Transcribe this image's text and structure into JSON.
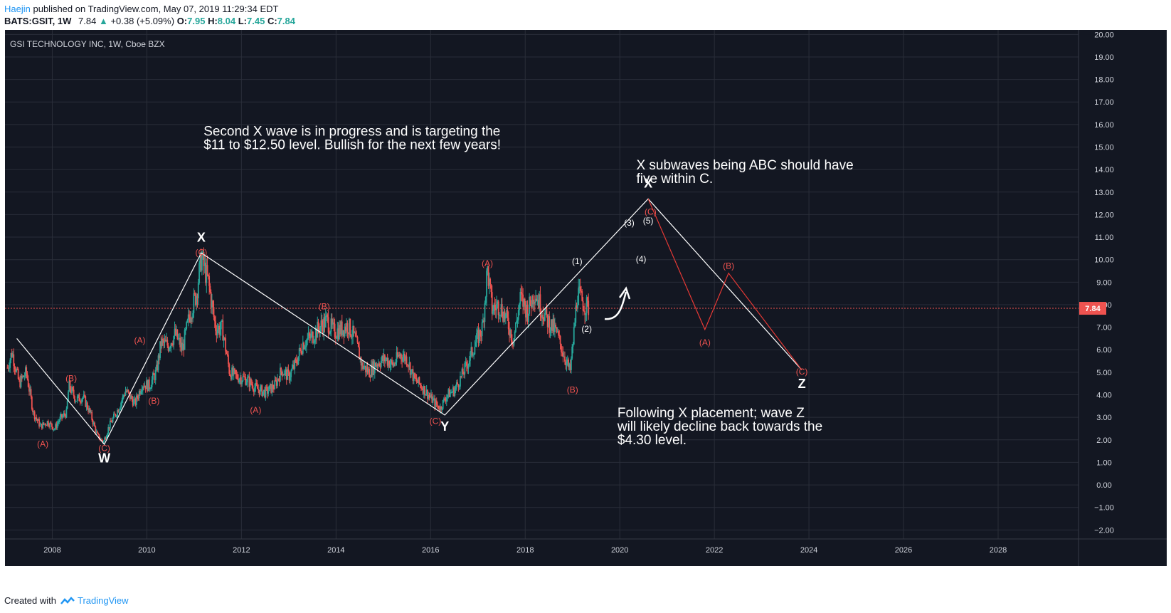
{
  "header": {
    "author": "Haejin",
    "published": "published on TradingView.com, May 07, 2019 11:29:34 EDT",
    "symbol": "BATS:GSIT, 1W",
    "last": "7.84",
    "change": "+0.38 (+5.09%)",
    "open_label": "O:",
    "open": "7.95",
    "high_label": "H:",
    "high": "8.04",
    "low_label": "L:",
    "low": "7.45",
    "close_label": "C:",
    "close": "7.84"
  },
  "footer": {
    "created_with": "Created with",
    "brand": "TradingView"
  },
  "colors": {
    "background": "#131722",
    "white": "#ffffff",
    "red": "#ef5350",
    "green": "#26a69a",
    "grid": "#2a2e39",
    "axis_text": "#d1d4dc",
    "price_line": "#ef5350"
  },
  "chart_data": {
    "type": "candlestick",
    "title": "GSI TECHNOLOGY INC, 1W, Cboe BZX",
    "x_range": [
      2007.0,
      2029.7
    ],
    "y_range": [
      -2.4,
      20.2
    ],
    "x_ticks": [
      2008,
      2010,
      2012,
      2014,
      2016,
      2018,
      2020,
      2022,
      2024,
      2026,
      2028
    ],
    "x_tick_labels": [
      "2008",
      "2010",
      "2012",
      "2014",
      "2016",
      "2018",
      "2020",
      "2022",
      "2024",
      "2026",
      "2028"
    ],
    "y_ticks": [
      -2,
      -1,
      0,
      1,
      2,
      3,
      4,
      5,
      6,
      7,
      8,
      9,
      10,
      11,
      12,
      13,
      14,
      15,
      16,
      17,
      18,
      19,
      20
    ],
    "y_tick_labels": [
      "−2.00",
      "−1.00",
      "0.00",
      "1.00",
      "2.00",
      "3.00",
      "4.00",
      "5.00",
      "6.00",
      "7.00",
      "8.00",
      "9.00",
      "10.00",
      "11.00",
      "12.00",
      "13.00",
      "14.00",
      "15.00",
      "16.00",
      "17.00",
      "18.00",
      "19.00",
      "20.00"
    ],
    "current_price": 7.84,
    "current_price_label": "7.84",
    "price_path": [
      [
        2007.05,
        5.2
      ],
      [
        2007.15,
        5.9
      ],
      [
        2007.3,
        4.5
      ],
      [
        2007.45,
        5.0
      ],
      [
        2007.6,
        3.2
      ],
      [
        2007.75,
        2.6
      ],
      [
        2007.9,
        2.8
      ],
      [
        2008.05,
        2.5
      ],
      [
        2008.15,
        2.9
      ],
      [
        2008.3,
        3.2
      ],
      [
        2008.35,
        4.4
      ],
      [
        2008.5,
        3.8
      ],
      [
        2008.65,
        3.9
      ],
      [
        2008.8,
        3.2
      ],
      [
        2008.95,
        2.2
      ],
      [
        2009.08,
        1.9
      ],
      [
        2009.2,
        2.6
      ],
      [
        2009.4,
        3.4
      ],
      [
        2009.55,
        4.2
      ],
      [
        2009.75,
        3.6
      ],
      [
        2009.9,
        4.5
      ],
      [
        2010.05,
        4.4
      ],
      [
        2010.2,
        5.0
      ],
      [
        2010.3,
        6.3
      ],
      [
        2010.45,
        6.2
      ],
      [
        2010.6,
        6.7
      ],
      [
        2010.75,
        6.0
      ],
      [
        2010.9,
        7.5
      ],
      [
        2011.05,
        8.5
      ],
      [
        2011.15,
        10.1
      ],
      [
        2011.3,
        9.0
      ],
      [
        2011.45,
        7.0
      ],
      [
        2011.6,
        6.9
      ],
      [
        2011.75,
        5.0
      ],
      [
        2011.9,
        4.8
      ],
      [
        2012.1,
        4.7
      ],
      [
        2012.3,
        4.3
      ],
      [
        2012.5,
        4.1
      ],
      [
        2012.7,
        4.4
      ],
      [
        2012.85,
        5.1
      ],
      [
        2013.0,
        4.8
      ],
      [
        2013.15,
        5.4
      ],
      [
        2013.3,
        6.3
      ],
      [
        2013.5,
        6.6
      ],
      [
        2013.65,
        7.0
      ],
      [
        2013.8,
        7.3
      ],
      [
        2013.95,
        6.8
      ],
      [
        2014.1,
        6.9
      ],
      [
        2014.25,
        7.1
      ],
      [
        2014.4,
        6.5
      ],
      [
        2014.55,
        5.3
      ],
      [
        2014.7,
        5.0
      ],
      [
        2014.85,
        5.4
      ],
      [
        2015.05,
        5.6
      ],
      [
        2015.2,
        5.3
      ],
      [
        2015.35,
        5.8
      ],
      [
        2015.5,
        5.6
      ],
      [
        2015.65,
        4.7
      ],
      [
        2015.8,
        4.4
      ],
      [
        2015.95,
        4.0
      ],
      [
        2016.1,
        3.6
      ],
      [
        2016.2,
        3.4
      ],
      [
        2016.35,
        4.0
      ],
      [
        2016.5,
        4.2
      ],
      [
        2016.65,
        4.8
      ],
      [
        2016.8,
        5.5
      ],
      [
        2016.95,
        6.3
      ],
      [
        2017.1,
        7.0
      ],
      [
        2017.2,
        9.6
      ],
      [
        2017.3,
        7.8
      ],
      [
        2017.45,
        8.0
      ],
      [
        2017.6,
        7.4
      ],
      [
        2017.75,
        6.4
      ],
      [
        2017.9,
        8.3
      ],
      [
        2018.05,
        7.7
      ],
      [
        2018.2,
        8.6
      ],
      [
        2018.35,
        7.8
      ],
      [
        2018.5,
        7.2
      ],
      [
        2018.65,
        6.8
      ],
      [
        2018.8,
        5.9
      ],
      [
        2018.95,
        5.0
      ],
      [
        2019.02,
        6.5
      ],
      [
        2019.1,
        8.5
      ],
      [
        2019.25,
        8.0
      ],
      [
        2019.35,
        7.84
      ]
    ],
    "elliott_white_path": [
      [
        2007.25,
        6.5
      ],
      [
        2009.1,
        1.8
      ],
      [
        2011.15,
        10.3
      ],
      [
        2016.3,
        3.1
      ],
      [
        2020.6,
        12.7
      ],
      [
        2023.85,
        5.1
      ]
    ],
    "elliott_red_path": [
      [
        2020.6,
        12.7
      ],
      [
        2021.8,
        6.9
      ],
      [
        2022.3,
        9.4
      ],
      [
        2023.85,
        5.1
      ]
    ],
    "wave_labels": [
      {
        "text": "X",
        "x": 2011.15,
        "y": 10.8,
        "color": "white",
        "size": 18
      },
      {
        "text": "W",
        "x": 2009.1,
        "y": 1.0,
        "color": "white",
        "size": 18
      },
      {
        "text": "Y",
        "x": 2016.3,
        "y": 2.4,
        "color": "white",
        "size": 18
      },
      {
        "text": "X",
        "x": 2020.6,
        "y": 13.2,
        "color": "white",
        "size": 18
      },
      {
        "text": "Z",
        "x": 2023.85,
        "y": 4.3,
        "color": "white",
        "size": 18
      },
      {
        "text": "(C)",
        "x": 2011.15,
        "y": 10.2,
        "color": "red",
        "size": 12
      },
      {
        "text": "(C)",
        "x": 2009.1,
        "y": 1.5,
        "color": "red",
        "size": 12
      },
      {
        "text": "(C)",
        "x": 2016.1,
        "y": 2.7,
        "color": "red",
        "size": 12
      },
      {
        "text": "(C)",
        "x": 2020.65,
        "y": 12.0,
        "color": "red",
        "size": 12
      },
      {
        "text": "(C)",
        "x": 2023.85,
        "y": 4.9,
        "color": "red",
        "size": 12
      },
      {
        "text": "(A)",
        "x": 2007.8,
        "y": 1.7,
        "color": "red",
        "size": 12
      },
      {
        "text": "(B)",
        "x": 2008.4,
        "y": 4.6,
        "color": "red",
        "size": 12
      },
      {
        "text": "(A)",
        "x": 2009.85,
        "y": 6.3,
        "color": "red",
        "size": 12
      },
      {
        "text": "(B)",
        "x": 2010.15,
        "y": 3.6,
        "color": "red",
        "size": 12
      },
      {
        "text": "(B)",
        "x": 2013.75,
        "y": 7.8,
        "color": "red",
        "size": 12
      },
      {
        "text": "(A)",
        "x": 2012.3,
        "y": 3.2,
        "color": "red",
        "size": 12
      },
      {
        "text": "(A)",
        "x": 2017.2,
        "y": 9.7,
        "color": "red",
        "size": 12
      },
      {
        "text": "(B)",
        "x": 2019.0,
        "y": 4.1,
        "color": "red",
        "size": 12
      },
      {
        "text": "(A)",
        "x": 2021.8,
        "y": 6.2,
        "color": "red",
        "size": 12
      },
      {
        "text": "(B)",
        "x": 2022.3,
        "y": 9.6,
        "color": "red",
        "size": 12
      },
      {
        "text": "(1)",
        "x": 2019.1,
        "y": 9.8,
        "color": "white",
        "size": 12
      },
      {
        "text": "(2)",
        "x": 2019.3,
        "y": 6.8,
        "color": "white",
        "size": 12
      },
      {
        "text": "(3)",
        "x": 2020.2,
        "y": 11.5,
        "color": "white",
        "size": 12
      },
      {
        "text": "(4)",
        "x": 2020.45,
        "y": 9.9,
        "color": "white",
        "size": 12
      },
      {
        "text": "(5)",
        "x": 2020.6,
        "y": 11.6,
        "color": "white",
        "size": 12
      }
    ],
    "annotations": [
      {
        "lines": [
          "Second X wave is in progress and is targeting the",
          "$11 to $12.50 level. Bullish for the next few years!"
        ],
        "x": 2011.2,
        "y": 15.5
      },
      {
        "lines": [
          "X subwaves being ABC should have",
          "five within C."
        ],
        "x": 2020.35,
        "y": 14.0
      },
      {
        "lines": [
          "Following X placement; wave Z",
          "will likely decline back towards the",
          "$4.30 level."
        ],
        "x": 2019.95,
        "y": 3.0
      }
    ]
  }
}
